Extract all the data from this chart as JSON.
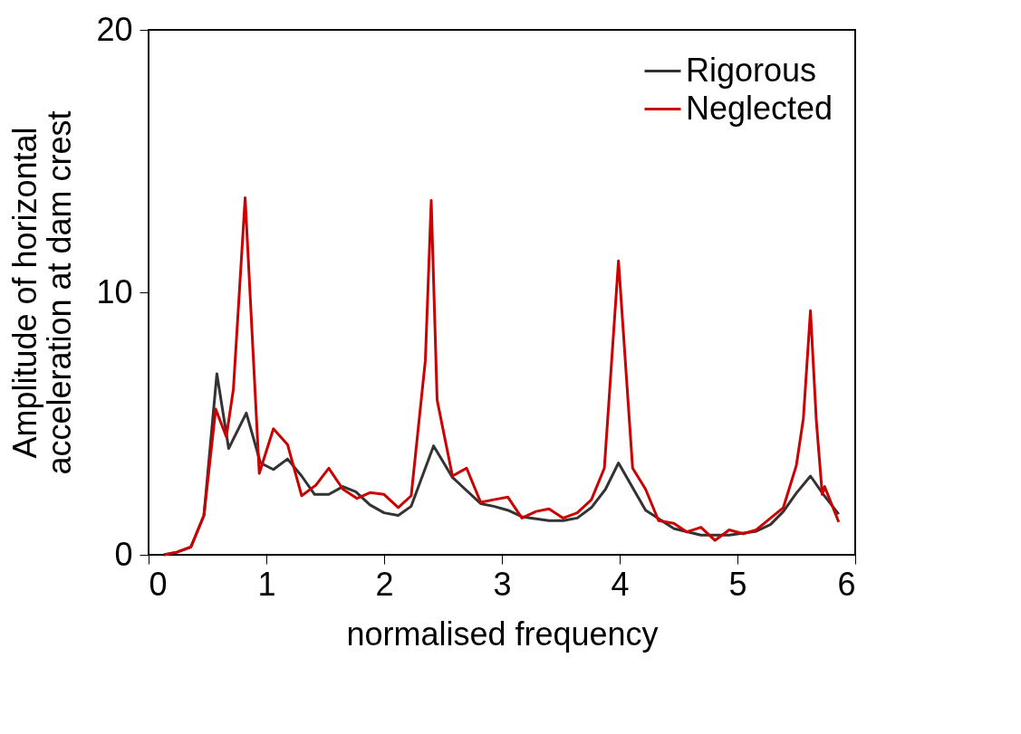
{
  "chart_data": {
    "type": "line",
    "xlabel": "normalised frequency",
    "ylabel": "Amplitude of horizontal acceleration at dam crest",
    "xlim": [
      0,
      6
    ],
    "ylim": [
      0,
      20
    ],
    "xticks": [
      0,
      1,
      2,
      3,
      4,
      5,
      6
    ],
    "yticks": [
      0,
      10,
      20
    ],
    "legend": "top right",
    "grid": false,
    "line_style": "solid",
    "marker": "none",
    "series": [
      {
        "name": "Rigorous",
        "color": "#333333",
        "x": [
          0.13,
          0.24,
          0.36,
          0.47,
          0.58,
          0.68,
          0.83,
          0.95,
          1.06,
          1.18,
          1.3,
          1.41,
          1.53,
          1.65,
          1.76,
          1.88,
          2.0,
          2.12,
          2.23,
          2.42,
          2.58,
          2.82,
          2.93,
          3.05,
          3.17,
          3.4,
          3.52,
          3.64,
          3.76,
          3.88,
          3.99,
          4.22,
          4.46,
          4.69,
          4.93,
          5.16,
          5.28,
          5.39,
          5.5,
          5.62,
          5.73,
          5.86
        ],
        "values": [
          0,
          0.1,
          0.3,
          1.5,
          6.9,
          4.05,
          5.4,
          3.5,
          3.25,
          3.65,
          3.0,
          2.3,
          2.3,
          2.6,
          2.4,
          1.9,
          1.6,
          1.5,
          1.85,
          4.15,
          2.95,
          1.95,
          1.85,
          1.7,
          1.45,
          1.3,
          1.3,
          1.4,
          1.8,
          2.5,
          3.5,
          1.7,
          1.0,
          0.75,
          0.75,
          0.9,
          1.15,
          1.65,
          2.35,
          3.0,
          2.3,
          1.55
        ]
      },
      {
        "name": "Neglected",
        "color": "#cc0000",
        "x": [
          0.13,
          0.24,
          0.36,
          0.47,
          0.57,
          0.66,
          0.72,
          0.82,
          0.94,
          1.06,
          1.18,
          1.3,
          1.42,
          1.53,
          1.65,
          1.77,
          1.88,
          2.0,
          2.12,
          2.23,
          2.35,
          2.4,
          2.45,
          2.58,
          2.7,
          2.82,
          2.93,
          3.05,
          3.17,
          3.29,
          3.4,
          3.52,
          3.64,
          3.76,
          3.87,
          3.99,
          4.11,
          4.22,
          4.33,
          4.46,
          4.57,
          4.69,
          4.81,
          4.93,
          5.05,
          5.16,
          5.39,
          5.5,
          5.56,
          5.62,
          5.67,
          5.72,
          5.74,
          5.86
        ],
        "values": [
          0,
          0.1,
          0.3,
          1.5,
          5.55,
          4.5,
          6.3,
          13.6,
          3.1,
          4.8,
          4.2,
          2.25,
          2.65,
          3.3,
          2.5,
          2.15,
          2.37,
          2.3,
          1.8,
          2.25,
          7.4,
          13.5,
          5.9,
          3.0,
          3.3,
          2.0,
          2.1,
          2.2,
          1.4,
          1.65,
          1.75,
          1.4,
          1.6,
          2.1,
          3.3,
          11.2,
          3.3,
          2.5,
          1.3,
          1.2,
          0.87,
          1.05,
          0.55,
          0.95,
          0.8,
          0.95,
          1.8,
          3.4,
          5.2,
          9.3,
          5.1,
          2.3,
          2.6,
          1.25
        ]
      }
    ]
  }
}
